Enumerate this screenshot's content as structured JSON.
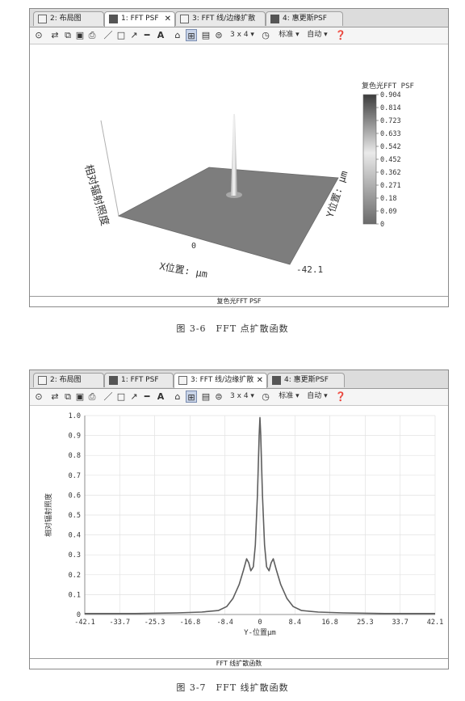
{
  "windows": [
    {
      "tabs": [
        {
          "label": "2: 布局图",
          "icon": "layout-icon"
        },
        {
          "label": "1: FFT PSF",
          "icon": "psf-window-icon",
          "close": "✕"
        },
        {
          "label": "3: FFT 线/边缘扩散",
          "icon": "line-spread-icon"
        },
        {
          "label": "4: 惠更斯PSF",
          "icon": "huygens-window-icon"
        }
      ],
      "toolbar": {
        "layout": "3 x 4 ▾",
        "standard": "标准 ▾",
        "auto": "自动 ▾"
      },
      "footer": "复色光FFT PSF"
    },
    {
      "tabs": [
        {
          "label": "2: 布局图",
          "icon": "layout-icon"
        },
        {
          "label": "1: FFT PSF",
          "icon": "psf-window-icon"
        },
        {
          "label": "3: FFT 线/边缘扩散",
          "icon": "line-spread-icon",
          "close": "✕"
        },
        {
          "label": "4: 惠更斯PSF",
          "icon": "huygens-window-icon"
        }
      ],
      "toolbar": {
        "layout": "3 x 4 ▾",
        "standard": "标准 ▾",
        "auto": "自动 ▾"
      },
      "footer": "FFT 线扩散函数"
    }
  ],
  "captions": [
    "图 3-6　FFT 点扩散函数",
    "图 3-7　FFT 线扩散函数"
  ],
  "chart_data": [
    {
      "type": "surface3d",
      "zlabel": "相对辐射照度",
      "xlabel": "X位置: μm",
      "ylabel": "Y位置: μm",
      "x_tick": "0",
      "y_tick": "-42.1",
      "colorbar_title": "复色光FFT PSF",
      "colorbar_ticks": [
        "0.904",
        "0.814",
        "0.723",
        "0.633",
        "0.542",
        "0.452",
        "0.362",
        "0.271",
        "0.18",
        "0.09",
        "0"
      ],
      "colors": {
        "low": "#6a6a6a",
        "high": "#3c3c3c",
        "mid": "#eaeaea"
      }
    },
    {
      "type": "line",
      "xlabel": "Y-位置μm",
      "ylabel": "相对辐射照度",
      "x_ticks": [
        "-42.1",
        "-33.7",
        "-25.3",
        "-16.8",
        "-8.4",
        "0",
        "8.4",
        "16.8",
        "25.3",
        "33.7",
        "42.1"
      ],
      "y_ticks": [
        "0",
        "0.1",
        "0.2",
        "0.3",
        "0.4",
        "0.5",
        "0.6",
        "0.7",
        "0.8",
        "0.9",
        "1.0"
      ],
      "xlim": [
        -42.1,
        42.1
      ],
      "ylim": [
        0,
        1.0
      ],
      "grid": true,
      "series": [
        {
          "x": [
            -42.1,
            -30,
            -20,
            -14,
            -10,
            -8,
            -6.5,
            -5,
            -4,
            -3.2,
            -2.7,
            -2.2,
            -1.6,
            -1.1,
            -0.6,
            -0.2,
            0,
            0.2,
            0.6,
            1.1,
            1.6,
            2.2,
            2.7,
            3.2,
            4,
            5,
            6.5,
            8,
            10,
            14,
            20,
            30,
            42.1
          ],
          "y": [
            0.005,
            0.005,
            0.008,
            0.012,
            0.02,
            0.04,
            0.08,
            0.15,
            0.22,
            0.28,
            0.26,
            0.22,
            0.24,
            0.35,
            0.6,
            0.9,
            0.99,
            0.9,
            0.6,
            0.35,
            0.24,
            0.22,
            0.26,
            0.28,
            0.22,
            0.15,
            0.08,
            0.04,
            0.02,
            0.012,
            0.008,
            0.005,
            0.005
          ]
        }
      ],
      "colors": {
        "line": "#5e5e5e",
        "grid": "#e2e2e2"
      }
    }
  ]
}
